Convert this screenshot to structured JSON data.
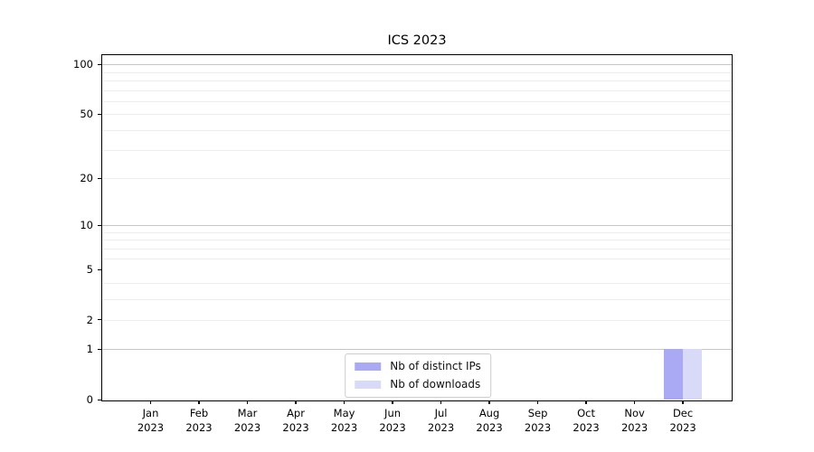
{
  "chart_data": {
    "type": "bar",
    "title": "ICS 2023",
    "categories": [
      {
        "line1": "Jan",
        "line2": "2023",
        "label": "Jan 2023"
      },
      {
        "line1": "Feb",
        "line2": "2023",
        "label": "Feb 2023"
      },
      {
        "line1": "Mar",
        "line2": "2023",
        "label": "Mar 2023"
      },
      {
        "line1": "Apr",
        "line2": "2023",
        "label": "Apr 2023"
      },
      {
        "line1": "May",
        "line2": "2023",
        "label": "May 2023"
      },
      {
        "line1": "Jun",
        "line2": "2023",
        "label": "Jun 2023"
      },
      {
        "line1": "Jul",
        "line2": "2023",
        "label": "Jul 2023"
      },
      {
        "line1": "Aug",
        "line2": "2023",
        "label": "Aug 2023"
      },
      {
        "line1": "Sep",
        "line2": "2023",
        "label": "Sep 2023"
      },
      {
        "line1": "Oct",
        "line2": "2023",
        "label": "Oct 2023"
      },
      {
        "line1": "Nov",
        "line2": "2023",
        "label": "Nov 2023"
      },
      {
        "line1": "Dec",
        "line2": "2023",
        "label": "Dec 2023"
      }
    ],
    "series": [
      {
        "name": "Nb of distinct IPs",
        "color": "#aaaaf4",
        "values": [
          0,
          0,
          0,
          0,
          0,
          0,
          0,
          0,
          0,
          0,
          0,
          1
        ]
      },
      {
        "name": "Nb of downloads",
        "color": "#d9d9f8",
        "values": [
          0,
          0,
          0,
          0,
          0,
          0,
          0,
          0,
          0,
          0,
          0,
          1
        ]
      }
    ],
    "xlabel": "",
    "ylabel": "",
    "y_axis": {
      "scale": "log10(1+y)",
      "labeled_ticks": [
        0,
        1,
        2,
        5,
        10,
        20,
        50,
        100
      ],
      "major_gridlines": [
        1,
        10,
        100
      ],
      "minor_gridlines": [
        2,
        3,
        4,
        6,
        7,
        8,
        9,
        20,
        30,
        40,
        50,
        60,
        70,
        80,
        90
      ],
      "ylim": [
        0,
        114
      ]
    },
    "grid": "horizontal",
    "legend_position": "lower center"
  },
  "colors": {
    "background": "#ffffff",
    "spine": "#000000",
    "text": "#000000",
    "grid_major": "#c6c6c6",
    "grid_minor": "#ededed",
    "legend_border": "#cccccc",
    "bar_distinct_ips": "#aaaaf4",
    "bar_downloads": "#d9d9f8"
  }
}
